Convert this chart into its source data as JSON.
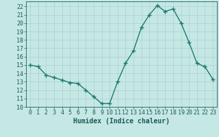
{
  "x": [
    0,
    1,
    2,
    3,
    4,
    5,
    6,
    7,
    8,
    9,
    10,
    11,
    12,
    13,
    14,
    15,
    16,
    17,
    18,
    19,
    20,
    21,
    22,
    23
  ],
  "y": [
    15.0,
    14.8,
    13.8,
    13.5,
    13.2,
    12.9,
    12.8,
    12.0,
    11.2,
    10.4,
    10.4,
    13.0,
    15.2,
    16.7,
    19.5,
    21.0,
    22.1,
    21.4,
    21.7,
    20.0,
    17.7,
    15.2,
    14.8,
    13.3
  ],
  "line_color": "#1a7a6e",
  "marker": "+",
  "marker_size": 4,
  "bg_color": "#c5e8e5",
  "grid_color": "#aacfcc",
  "xlabel": "Humidex (Indice chaleur)",
  "xlim": [
    -0.5,
    23.5
  ],
  "ylim": [
    10,
    22.6
  ],
  "yticks": [
    10,
    11,
    12,
    13,
    14,
    15,
    16,
    17,
    18,
    19,
    20,
    21,
    22
  ],
  "xticks": [
    0,
    1,
    2,
    3,
    4,
    5,
    6,
    7,
    8,
    9,
    10,
    11,
    12,
    13,
    14,
    15,
    16,
    17,
    18,
    19,
    20,
    21,
    22,
    23
  ],
  "tick_color": "#1a5a58",
  "text_color": "#1a5a58",
  "xlabel_fontsize": 7,
  "tick_fontsize": 6,
  "linewidth": 1.0
}
